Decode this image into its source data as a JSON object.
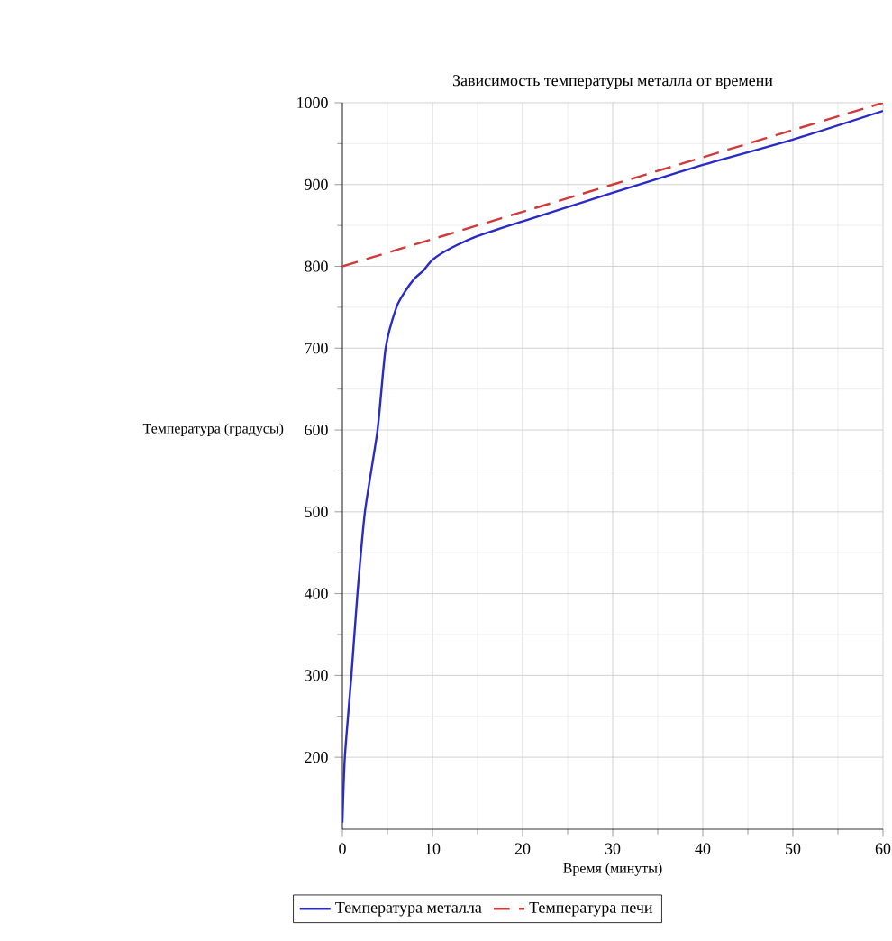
{
  "chart_data": {
    "type": "line",
    "title": "Зависимость температуры металла от времени",
    "xlabel": "Время (минуты)",
    "ylabel": "Температура (градусы)",
    "xlim": [
      0,
      60
    ],
    "ylim": [
      112,
      1000
    ],
    "xticks": [
      0,
      10,
      20,
      30,
      40,
      50,
      60
    ],
    "yticks": [
      200,
      300,
      400,
      500,
      600,
      700,
      800,
      900,
      1000
    ],
    "grid": true,
    "legend": "bottom",
    "series": [
      {
        "name": "Температура металла",
        "color": "#2a2ac8",
        "line_style": "solid",
        "x": [
          0,
          0.27,
          1,
          1.67,
          2.5,
          3.9,
          4.8,
          6,
          7,
          8,
          9,
          10,
          12,
          15,
          20,
          30,
          40,
          50,
          60
        ],
        "values": [
          120,
          200,
          300,
          400,
          500,
          600,
          700,
          750,
          770,
          785,
          795,
          808,
          822,
          837,
          855,
          890,
          924,
          955,
          990
        ]
      },
      {
        "name": "Температура печи",
        "color": "#d03a3a",
        "line_style": "dashed",
        "x": [
          0,
          60
        ],
        "values": [
          800,
          1000
        ]
      }
    ]
  }
}
